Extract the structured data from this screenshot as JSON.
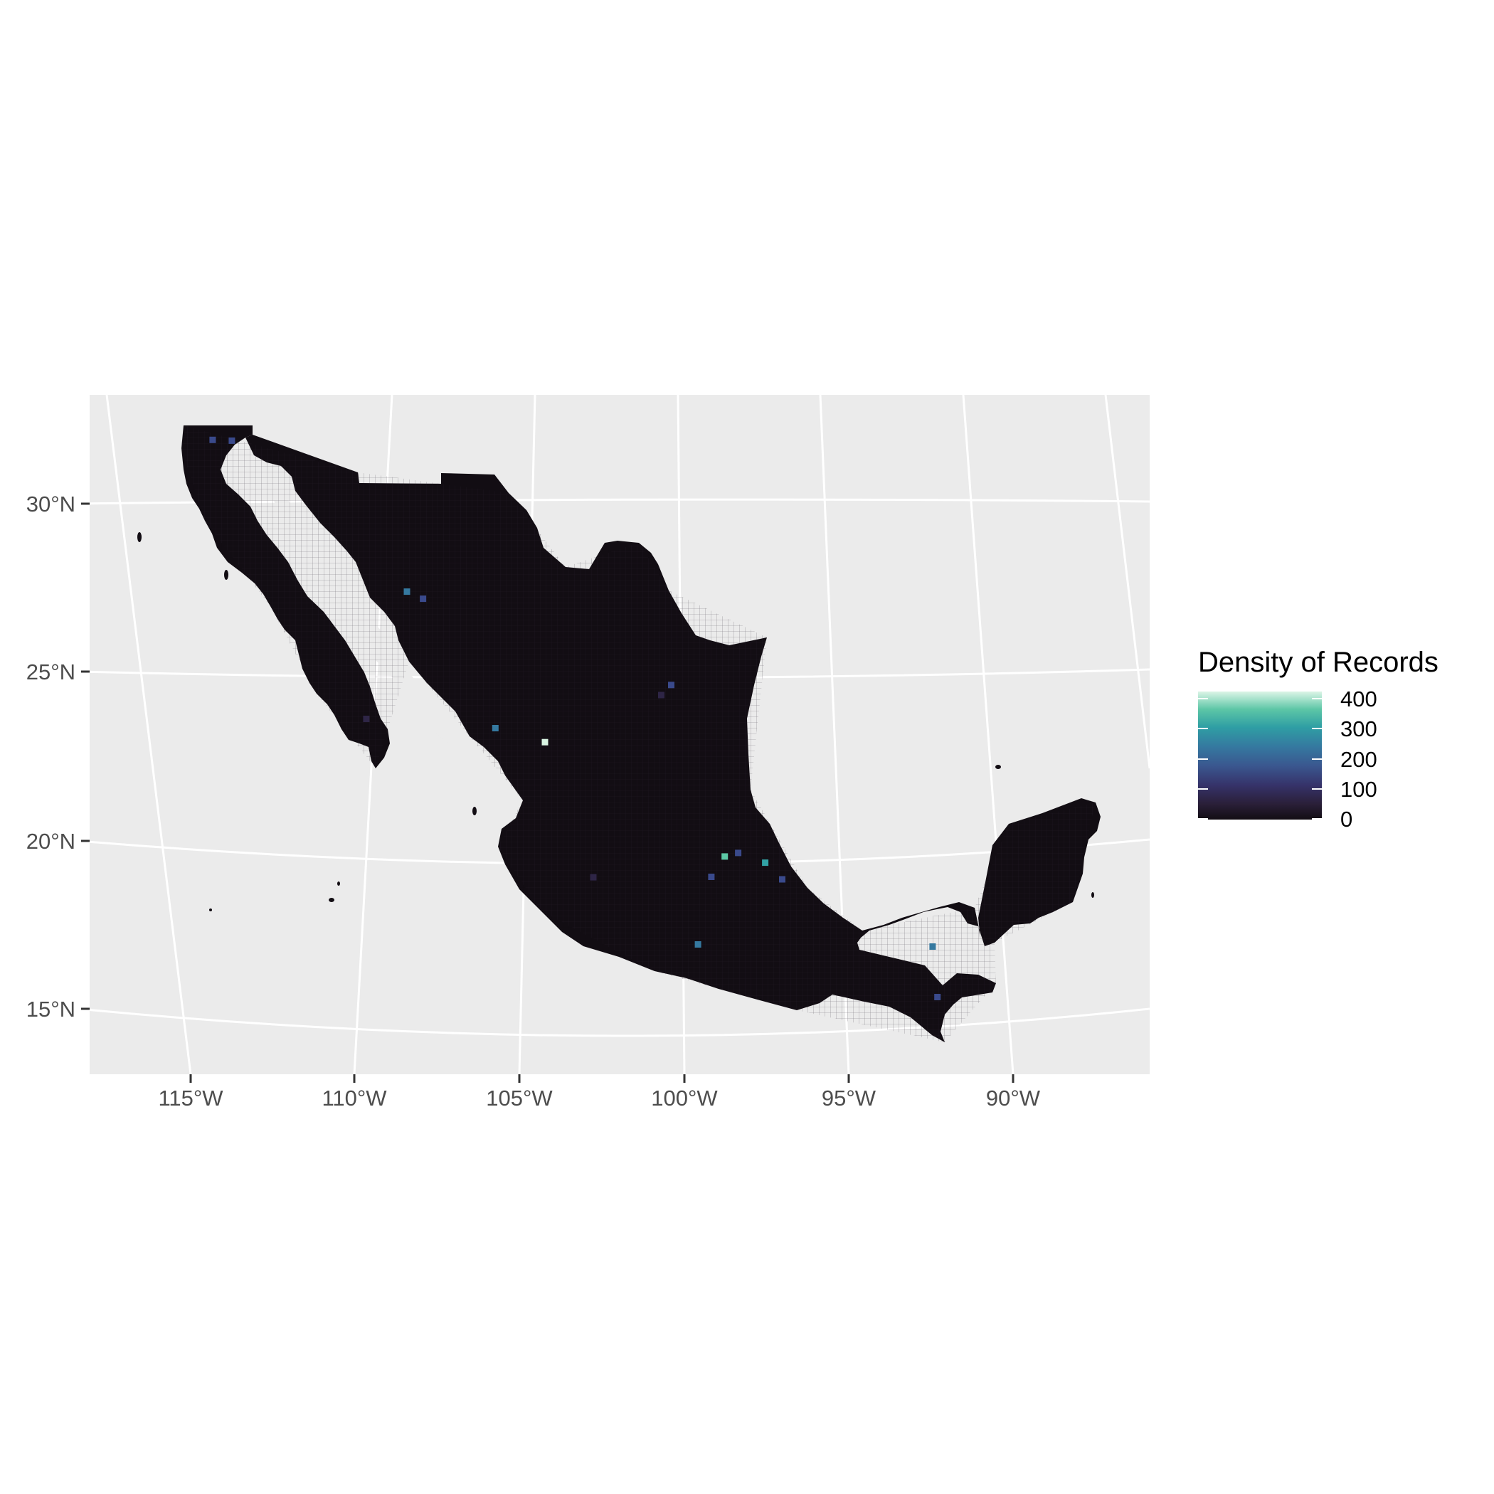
{
  "chart_data": {
    "type": "heatmap",
    "subtype": "choropleth-grid-map",
    "region": "Mexico",
    "title": "",
    "x_axis": {
      "ticks": [
        "115°W",
        "110°W",
        "105°W",
        "100°W",
        "95°W",
        "90°W"
      ]
    },
    "y_axis": {
      "ticks": [
        "30°N",
        "25°N",
        "20°N",
        "15°N"
      ]
    },
    "legend": {
      "title": "Density of Records",
      "position": "right",
      "breaks": [
        "0",
        "100",
        "200",
        "300",
        "400"
      ],
      "range": [
        0,
        450
      ],
      "colors": [
        "#120d13",
        "#2e2546",
        "#3a4a8c",
        "#3579a0",
        "#32a2a5",
        "#5cc8a5",
        "#d9f4e3"
      ]
    },
    "hotspots": [
      {
        "lon": -114.7,
        "lat": 31.6,
        "value": 170
      },
      {
        "lon": -114.1,
        "lat": 31.6,
        "value": 140
      },
      {
        "lon": -108.5,
        "lat": 27.3,
        "value": 200
      },
      {
        "lon": -108.0,
        "lat": 27.1,
        "value": 120
      },
      {
        "lon": -105.7,
        "lat": 23.3,
        "value": 210
      },
      {
        "lon": -104.2,
        "lat": 22.9,
        "value": 420
      },
      {
        "lon": -100.7,
        "lat": 24.3,
        "value": 110
      },
      {
        "lon": -100.4,
        "lat": 24.6,
        "value": 120
      },
      {
        "lon": -98.8,
        "lat": 19.5,
        "value": 380
      },
      {
        "lon": -98.4,
        "lat": 19.6,
        "value": 180
      },
      {
        "lon": -97.6,
        "lat": 19.3,
        "value": 330
      },
      {
        "lon": -99.2,
        "lat": 18.9,
        "value": 160
      },
      {
        "lon": -99.6,
        "lat": 16.9,
        "value": 240
      },
      {
        "lon": -92.7,
        "lat": 16.7,
        "value": 220
      },
      {
        "lon": -92.6,
        "lat": 15.2,
        "value": 130
      },
      {
        "lon": -109.6,
        "lat": 23.5,
        "value": 110
      },
      {
        "lon": -102.7,
        "lat": 18.9,
        "value": 110
      },
      {
        "lon": -97.1,
        "lat": 18.8,
        "value": 130
      }
    ]
  }
}
